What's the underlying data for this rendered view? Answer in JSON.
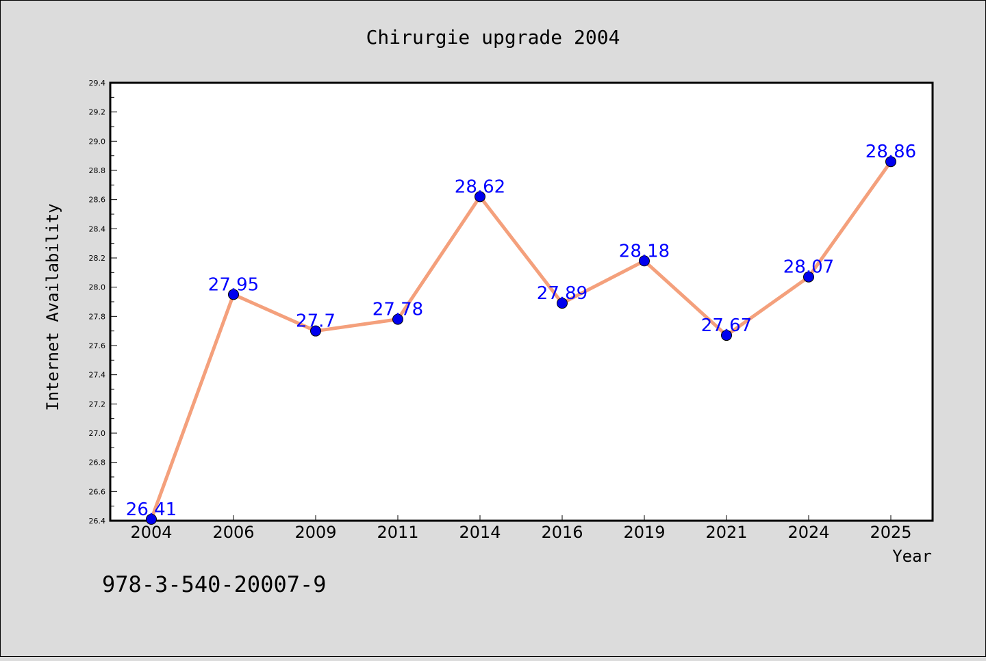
{
  "chart_data": {
    "type": "line",
    "title": "Chirurgie upgrade 2004",
    "xlabel": "Year",
    "ylabel": "Internet Availability",
    "categories": [
      "2004",
      "2006",
      "2009",
      "2011",
      "2014",
      "2016",
      "2019",
      "2021",
      "2024",
      "2025"
    ],
    "series": [
      {
        "values": [
          26.41,
          27.95,
          27.7,
          27.78,
          28.62,
          27.89,
          28.18,
          27.67,
          28.07,
          28.86
        ]
      }
    ],
    "data_labels": [
      "26.41",
      "27.95",
      "27.7",
      "27.78",
      "28.62",
      "27.89",
      "28.18",
      "27.67",
      "28.07",
      "28.86"
    ],
    "ylim": [
      26.4,
      29.4
    ],
    "yticks": [
      "26.4",
      "26.6",
      "26.8",
      "27.0",
      "27.2",
      "27.4",
      "27.6",
      "27.8",
      "28.0",
      "28.2",
      "28.4",
      "28.6",
      "28.8",
      "29.0",
      "29.2",
      "29.4"
    ],
    "grid": false,
    "legend": "none",
    "line_color": "#f4a07c",
    "marker_color": "#0000ee",
    "label_color": "#0000ff"
  },
  "footnote": "978-3-540-20007-9"
}
